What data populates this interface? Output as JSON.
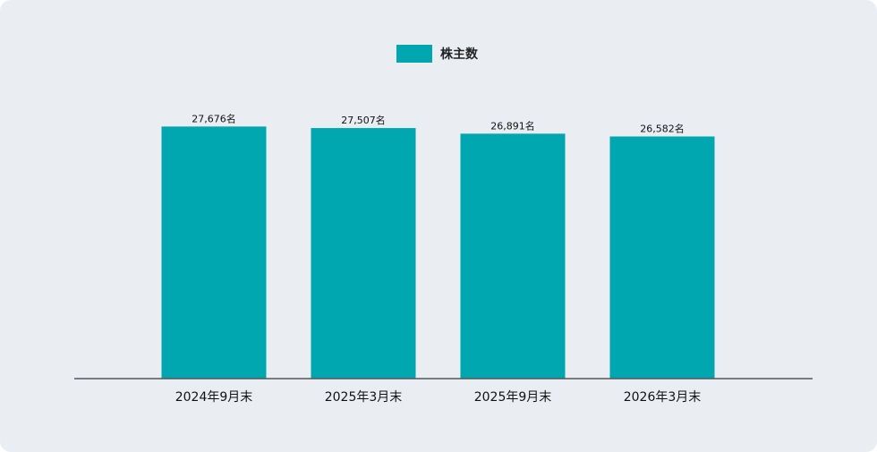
{
  "chart_data": {
    "type": "bar",
    "categories": [
      "2024年9月末",
      "2025年3月末",
      "2025年9月末",
      "2026年3月末"
    ],
    "series": [
      {
        "name": "株主数",
        "values": [
          27676,
          27507,
          26891,
          26582
        ]
      }
    ],
    "value_labels": [
      "27,676名",
      "27,507名",
      "26,891名",
      "26,582名"
    ],
    "title": "",
    "xlabel": "",
    "ylabel": "",
    "ylim": [
      0,
      28300
    ],
    "grid": false,
    "legend_position": "top-center",
    "bar_color": "#00a7b0"
  }
}
